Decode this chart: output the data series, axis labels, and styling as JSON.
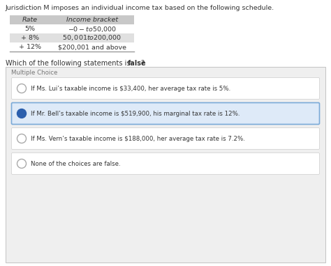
{
  "title_text": "Jurisdiction M imposes an individual income tax based on the following schedule.",
  "table_headers": [
    "Rate",
    "Income bracket"
  ],
  "table_rows": [
    [
      "5%",
      "$-0-  to $50,000"
    ],
    [
      "+ 8%",
      "$50,001 to $200,000"
    ],
    [
      "+ 12%",
      "$200,001 and above"
    ]
  ],
  "question_normal": "Which of the following statements is ",
  "question_bold": "false",
  "question_end": "?",
  "section_label": "Multiple Choice",
  "choices": [
    "If Ms. Lui’s taxable income is $33,400, her average tax rate is 5%.",
    "If Mr. Bell’s taxable income is $519,900, his marginal tax rate is 12%.",
    "If Ms. Vern’s taxable income is $188,000, her average tax rate is 7.2%.",
    "None of the choices are false."
  ],
  "selected_index": 1,
  "bg_color": "#efefef",
  "white": "#ffffff",
  "selected_bg": "#deeaf8",
  "selected_border": "#7aaad8",
  "table_header_bg": "#c8c8c8",
  "table_alt_bg": "#e0e0e0",
  "text_color": "#333333",
  "circle_filled_color": "#2b5fad",
  "page_bg": "#ffffff"
}
